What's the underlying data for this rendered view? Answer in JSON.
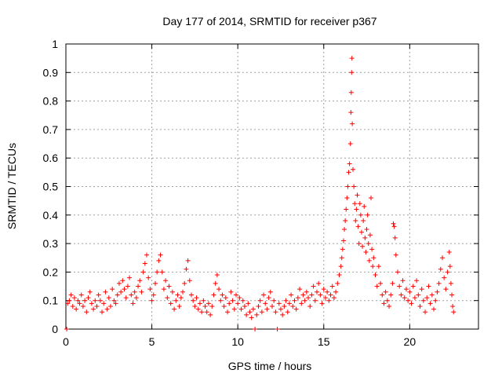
{
  "chart_data": {
    "type": "scatter",
    "title": "Day 177 of 2014, SRMTID for receiver p367",
    "xlabel": "GPS time / hours",
    "ylabel": "SRMTID / TECUs",
    "xlim": [
      0,
      24
    ],
    "ylim": [
      0,
      1
    ],
    "xticks": [
      0,
      5,
      10,
      15,
      20
    ],
    "xtick_labels": [
      "0",
      "5",
      "10",
      "15",
      "20"
    ],
    "yticks": [
      0,
      0.1,
      0.2,
      0.3,
      0.4,
      0.5,
      0.6,
      0.7,
      0.8,
      0.9,
      1
    ],
    "ytick_labels": [
      "0",
      "0.1",
      "0.2",
      "0.3",
      "0.4",
      "0.5",
      "0.6",
      "0.7",
      "0.8",
      "0.9",
      "1"
    ],
    "grid": true,
    "marker": "+",
    "color": "#ff0000",
    "series": [
      {
        "name": "SRMTID",
        "points": [
          [
            0.05,
            0.0
          ],
          [
            0.1,
            0.09
          ],
          [
            0.2,
            0.1
          ],
          [
            0.3,
            0.12
          ],
          [
            0.4,
            0.08
          ],
          [
            0.5,
            0.11
          ],
          [
            0.6,
            0.07
          ],
          [
            0.7,
            0.1
          ],
          [
            0.8,
            0.09
          ],
          [
            0.9,
            0.12
          ],
          [
            1.0,
            0.08
          ],
          [
            1.1,
            0.1
          ],
          [
            1.2,
            0.06
          ],
          [
            1.3,
            0.11
          ],
          [
            1.4,
            0.13
          ],
          [
            1.5,
            0.09
          ],
          [
            1.6,
            0.07
          ],
          [
            1.7,
            0.1
          ],
          [
            1.8,
            0.08
          ],
          [
            1.9,
            0.12
          ],
          [
            2.0,
            0.1
          ],
          [
            2.1,
            0.06
          ],
          [
            2.2,
            0.09
          ],
          [
            2.3,
            0.13
          ],
          [
            2.4,
            0.07
          ],
          [
            2.5,
            0.11
          ],
          [
            2.6,
            0.08
          ],
          [
            2.7,
            0.14
          ],
          [
            2.8,
            0.1
          ],
          [
            2.9,
            0.09
          ],
          [
            3.0,
            0.12
          ],
          [
            3.1,
            0.16
          ],
          [
            3.2,
            0.13
          ],
          [
            3.3,
            0.17
          ],
          [
            3.4,
            0.14
          ],
          [
            3.5,
            0.11
          ],
          [
            3.6,
            0.15
          ],
          [
            3.7,
            0.18
          ],
          [
            3.8,
            0.12
          ],
          [
            3.9,
            0.09
          ],
          [
            4.0,
            0.13
          ],
          [
            4.1,
            0.11
          ],
          [
            4.2,
            0.15
          ],
          [
            4.3,
            0.17
          ],
          [
            4.4,
            0.13
          ],
          [
            4.5,
            0.2
          ],
          [
            4.6,
            0.23
          ],
          [
            4.7,
            0.26
          ],
          [
            4.8,
            0.18
          ],
          [
            4.9,
            0.14
          ],
          [
            5.0,
            0.1
          ],
          [
            5.1,
            0.12
          ],
          [
            5.2,
            0.16
          ],
          [
            5.3,
            0.2
          ],
          [
            5.4,
            0.24
          ],
          [
            5.5,
            0.26
          ],
          [
            5.6,
            0.2
          ],
          [
            5.7,
            0.14
          ],
          [
            5.8,
            0.17
          ],
          [
            5.9,
            0.11
          ],
          [
            6.0,
            0.15
          ],
          [
            6.1,
            0.09
          ],
          [
            6.2,
            0.13
          ],
          [
            6.3,
            0.07
          ],
          [
            6.4,
            0.1
          ],
          [
            6.5,
            0.12
          ],
          [
            6.6,
            0.08
          ],
          [
            6.7,
            0.11
          ],
          [
            6.8,
            0.13
          ],
          [
            6.9,
            0.16
          ],
          [
            7.0,
            0.21
          ],
          [
            7.1,
            0.24
          ],
          [
            7.2,
            0.17
          ],
          [
            7.3,
            0.12
          ],
          [
            7.4,
            0.1
          ],
          [
            7.5,
            0.08
          ],
          [
            7.6,
            0.11
          ],
          [
            7.7,
            0.07
          ],
          [
            7.8,
            0.09
          ],
          [
            7.9,
            0.06
          ],
          [
            8.0,
            0.1
          ],
          [
            8.1,
            0.08
          ],
          [
            8.2,
            0.06
          ],
          [
            8.3,
            0.09
          ],
          [
            8.4,
            0.05
          ],
          [
            8.5,
            0.08
          ],
          [
            8.6,
            0.12
          ],
          [
            8.7,
            0.16
          ],
          [
            8.8,
            0.19
          ],
          [
            8.9,
            0.14
          ],
          [
            9.0,
            0.1
          ],
          [
            9.1,
            0.12
          ],
          [
            9.2,
            0.08
          ],
          [
            9.3,
            0.11
          ],
          [
            9.4,
            0.06
          ],
          [
            9.5,
            0.09
          ],
          [
            9.6,
            0.13
          ],
          [
            9.7,
            0.1
          ],
          [
            9.8,
            0.07
          ],
          [
            9.9,
            0.12
          ],
          [
            10.0,
            0.09
          ],
          [
            10.1,
            0.11
          ],
          [
            10.2,
            0.07
          ],
          [
            10.3,
            0.1
          ],
          [
            10.4,
            0.08
          ],
          [
            10.5,
            0.05
          ],
          [
            10.6,
            0.09
          ],
          [
            10.7,
            0.06
          ],
          [
            10.8,
            0.04
          ],
          [
            10.9,
            0.07
          ],
          [
            11.0,
            0.0
          ],
          [
            11.1,
            0.05
          ],
          [
            11.2,
            0.08
          ],
          [
            11.3,
            0.1
          ],
          [
            11.4,
            0.06
          ],
          [
            11.5,
            0.12
          ],
          [
            11.6,
            0.09
          ],
          [
            11.7,
            0.07
          ],
          [
            11.8,
            0.11
          ],
          [
            11.9,
            0.13
          ],
          [
            12.0,
            0.08
          ],
          [
            12.1,
            0.1
          ],
          [
            12.2,
            0.06
          ],
          [
            12.3,
            0.0
          ],
          [
            12.4,
            0.09
          ],
          [
            12.5,
            0.07
          ],
          [
            12.6,
            0.05
          ],
          [
            12.7,
            0.08
          ],
          [
            12.8,
            0.1
          ],
          [
            12.9,
            0.06
          ],
          [
            13.0,
            0.09
          ],
          [
            13.1,
            0.12
          ],
          [
            13.2,
            0.08
          ],
          [
            13.3,
            0.1
          ],
          [
            13.4,
            0.07
          ],
          [
            13.5,
            0.11
          ],
          [
            13.6,
            0.14
          ],
          [
            13.7,
            0.09
          ],
          [
            13.8,
            0.12
          ],
          [
            13.9,
            0.1
          ],
          [
            14.0,
            0.13
          ],
          [
            14.1,
            0.11
          ],
          [
            14.2,
            0.08
          ],
          [
            14.3,
            0.12
          ],
          [
            14.4,
            0.15
          ],
          [
            14.5,
            0.1
          ],
          [
            14.6,
            0.13
          ],
          [
            14.7,
            0.16
          ],
          [
            14.8,
            0.12
          ],
          [
            14.9,
            0.09
          ],
          [
            15.0,
            0.14
          ],
          [
            15.1,
            0.11
          ],
          [
            15.2,
            0.13
          ],
          [
            15.3,
            0.1
          ],
          [
            15.4,
            0.12
          ],
          [
            15.5,
            0.15
          ],
          [
            15.6,
            0.11
          ],
          [
            15.7,
            0.13
          ],
          [
            15.8,
            0.16
          ],
          [
            15.9,
            0.19
          ],
          [
            16.0,
            0.22
          ],
          [
            16.05,
            0.25
          ],
          [
            16.1,
            0.28
          ],
          [
            16.15,
            0.31
          ],
          [
            16.2,
            0.35
          ],
          [
            16.25,
            0.38
          ],
          [
            16.3,
            0.42
          ],
          [
            16.35,
            0.46
          ],
          [
            16.4,
            0.5
          ],
          [
            16.45,
            0.55
          ],
          [
            16.5,
            0.58
          ],
          [
            16.55,
            0.65
          ],
          [
            16.58,
            0.76
          ],
          [
            16.6,
            0.83
          ],
          [
            16.62,
            0.9
          ],
          [
            16.64,
            0.95
          ],
          [
            16.66,
            0.72
          ],
          [
            16.7,
            0.56
          ],
          [
            16.75,
            0.5
          ],
          [
            16.8,
            0.44
          ],
          [
            16.85,
            0.38
          ],
          [
            16.9,
            0.42
          ],
          [
            16.95,
            0.47
          ],
          [
            17.0,
            0.36
          ],
          [
            17.05,
            0.3
          ],
          [
            17.1,
            0.44
          ],
          [
            17.15,
            0.4
          ],
          [
            17.2,
            0.34
          ],
          [
            17.25,
            0.29
          ],
          [
            17.3,
            0.38
          ],
          [
            17.35,
            0.43
          ],
          [
            17.4,
            0.32
          ],
          [
            17.45,
            0.27
          ],
          [
            17.5,
            0.35
          ],
          [
            17.55,
            0.4
          ],
          [
            17.6,
            0.3
          ],
          [
            17.65,
            0.24
          ],
          [
            17.7,
            0.33
          ],
          [
            17.75,
            0.46
          ],
          [
            17.8,
            0.28
          ],
          [
            17.85,
            0.22
          ],
          [
            17.9,
            0.25
          ],
          [
            18.0,
            0.19
          ],
          [
            18.1,
            0.15
          ],
          [
            18.2,
            0.22
          ],
          [
            18.3,
            0.16
          ],
          [
            18.4,
            0.12
          ],
          [
            18.5,
            0.09
          ],
          [
            18.6,
            0.13
          ],
          [
            18.7,
            0.1
          ],
          [
            18.8,
            0.08
          ],
          [
            18.9,
            0.12
          ],
          [
            19.0,
            0.16
          ],
          [
            19.05,
            0.37
          ],
          [
            19.1,
            0.36
          ],
          [
            19.15,
            0.32
          ],
          [
            19.2,
            0.26
          ],
          [
            19.3,
            0.2
          ],
          [
            19.4,
            0.15
          ],
          [
            19.5,
            0.12
          ],
          [
            19.6,
            0.17
          ],
          [
            19.7,
            0.11
          ],
          [
            19.8,
            0.14
          ],
          [
            19.9,
            0.1
          ],
          [
            20.0,
            0.13
          ],
          [
            20.1,
            0.09
          ],
          [
            20.2,
            0.15
          ],
          [
            20.3,
            0.11
          ],
          [
            20.4,
            0.17
          ],
          [
            20.5,
            0.12
          ],
          [
            20.6,
            0.08
          ],
          [
            20.7,
            0.14
          ],
          [
            20.8,
            0.1
          ],
          [
            20.9,
            0.06
          ],
          [
            21.0,
            0.11
          ],
          [
            21.1,
            0.15
          ],
          [
            21.2,
            0.09
          ],
          [
            21.3,
            0.12
          ],
          [
            21.4,
            0.07
          ],
          [
            21.5,
            0.1
          ],
          [
            21.6,
            0.13
          ],
          [
            21.7,
            0.16
          ],
          [
            21.8,
            0.21
          ],
          [
            21.9,
            0.25
          ],
          [
            22.0,
            0.18
          ],
          [
            22.1,
            0.14
          ],
          [
            22.2,
            0.2
          ],
          [
            22.3,
            0.27
          ],
          [
            22.35,
            0.22
          ],
          [
            22.4,
            0.16
          ],
          [
            22.45,
            0.12
          ],
          [
            22.5,
            0.08
          ],
          [
            22.55,
            0.06
          ]
        ]
      }
    ]
  }
}
